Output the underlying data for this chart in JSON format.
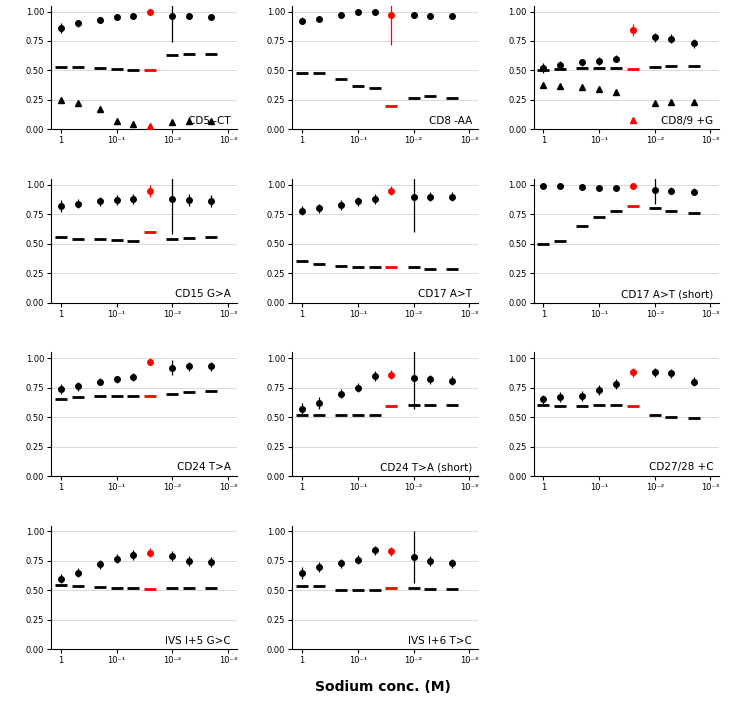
{
  "subplots": [
    {
      "label": "CD5 -CT",
      "x_positions": [
        1.0,
        0.5,
        0.2,
        0.1,
        0.05,
        0.025,
        0.01,
        0.005,
        0.002
      ],
      "series": [
        {
          "marker": "o",
          "colors": [
            "black",
            "black",
            "black",
            "black",
            "black",
            "red",
            "black",
            "black",
            "black"
          ],
          "y": [
            0.86,
            0.9,
            0.93,
            0.95,
            0.96,
            1.0,
            0.96,
            0.96,
            0.95
          ],
          "yerr": [
            0.04,
            0.03,
            0.02,
            0.02,
            0.02,
            0.02,
            0.22,
            0.02,
            0.02
          ]
        },
        {
          "marker": "_",
          "colors": [
            "black",
            "black",
            "black",
            "black",
            "black",
            "red",
            "black",
            "black",
            "black"
          ],
          "y": [
            0.53,
            0.53,
            0.52,
            0.51,
            0.5,
            0.5,
            0.63,
            0.64,
            0.64
          ],
          "yerr": [
            0.0,
            0.0,
            0.0,
            0.0,
            0.0,
            0.0,
            0.0,
            0.0,
            0.0
          ]
        },
        {
          "marker": "^",
          "colors": [
            "black",
            "black",
            "black",
            "black",
            "black",
            "red",
            "black",
            "black",
            "black"
          ],
          "y": [
            0.25,
            0.22,
            0.17,
            0.07,
            0.05,
            0.03,
            0.06,
            0.07,
            0.07
          ],
          "yerr": [
            0.0,
            0.0,
            0.0,
            0.0,
            0.0,
            0.0,
            0.0,
            0.0,
            0.0
          ]
        }
      ]
    },
    {
      "label": "CD8 -AA",
      "x_positions": [
        1.0,
        0.5,
        0.2,
        0.1,
        0.05,
        0.025,
        0.01,
        0.005,
        0.002
      ],
      "series": [
        {
          "marker": "o",
          "colors": [
            "black",
            "black",
            "black",
            "black",
            "black",
            "red",
            "black",
            "black",
            "black"
          ],
          "y": [
            0.92,
            0.94,
            0.97,
            1.0,
            1.0,
            0.97,
            0.97,
            0.96,
            0.96
          ],
          "yerr": [
            0.03,
            0.02,
            0.02,
            0.02,
            0.02,
            0.25,
            0.02,
            0.02,
            0.02
          ]
        },
        {
          "marker": "_",
          "colors": [
            "black",
            "black",
            "black",
            "black",
            "black",
            "red",
            "black",
            "black",
            "black"
          ],
          "y": [
            0.48,
            0.48,
            0.43,
            0.37,
            0.35,
            0.2,
            0.27,
            0.28,
            0.27
          ],
          "yerr": [
            0.0,
            0.0,
            0.0,
            0.0,
            0.0,
            0.0,
            0.0,
            0.0,
            0.0
          ]
        }
      ]
    },
    {
      "label": "CD8/9 +G",
      "x_positions": [
        1.0,
        0.5,
        0.2,
        0.1,
        0.05,
        0.025,
        0.01,
        0.005,
        0.002
      ],
      "series": [
        {
          "marker": "o",
          "colors": [
            "black",
            "black",
            "black",
            "black",
            "black",
            "red",
            "black",
            "black",
            "black"
          ],
          "y": [
            0.52,
            0.55,
            0.57,
            0.58,
            0.6,
            0.84,
            0.78,
            0.77,
            0.73
          ],
          "yerr": [
            0.04,
            0.03,
            0.03,
            0.03,
            0.03,
            0.05,
            0.04,
            0.04,
            0.04
          ]
        },
        {
          "marker": "_",
          "colors": [
            "black",
            "black",
            "black",
            "black",
            "black",
            "red",
            "black",
            "black",
            "black"
          ],
          "y": [
            0.5,
            0.51,
            0.52,
            0.52,
            0.52,
            0.51,
            0.53,
            0.54,
            0.54
          ],
          "yerr": [
            0.0,
            0.0,
            0.0,
            0.0,
            0.0,
            0.0,
            0.0,
            0.0,
            0.0
          ]
        },
        {
          "marker": "^",
          "colors": [
            "black",
            "black",
            "black",
            "black",
            "black",
            "red",
            "black",
            "black",
            "black"
          ],
          "y": [
            0.38,
            0.37,
            0.36,
            0.34,
            0.32,
            0.08,
            0.22,
            0.23,
            0.23
          ],
          "yerr": [
            0.0,
            0.0,
            0.0,
            0.0,
            0.0,
            0.0,
            0.0,
            0.0,
            0.0
          ]
        }
      ]
    },
    {
      "label": "CD15 G>A",
      "x_positions": [
        1.0,
        0.5,
        0.2,
        0.1,
        0.05,
        0.025,
        0.01,
        0.005,
        0.002
      ],
      "series": [
        {
          "marker": "o",
          "colors": [
            "black",
            "black",
            "black",
            "black",
            "black",
            "red",
            "black",
            "black",
            "black"
          ],
          "y": [
            0.82,
            0.84,
            0.86,
            0.87,
            0.88,
            0.95,
            0.88,
            0.87,
            0.86
          ],
          "yerr": [
            0.05,
            0.04,
            0.04,
            0.04,
            0.04,
            0.05,
            0.3,
            0.05,
            0.05
          ]
        },
        {
          "marker": "_",
          "colors": [
            "black",
            "black",
            "black",
            "black",
            "black",
            "red",
            "black",
            "black",
            "black"
          ],
          "y": [
            0.56,
            0.54,
            0.54,
            0.53,
            0.52,
            0.6,
            0.54,
            0.55,
            0.56
          ],
          "yerr": [
            0.0,
            0.0,
            0.0,
            0.0,
            0.0,
            0.0,
            0.0,
            0.0,
            0.0
          ]
        }
      ]
    },
    {
      "label": "CD17 A>T",
      "x_positions": [
        1.0,
        0.5,
        0.2,
        0.1,
        0.05,
        0.025,
        0.01,
        0.005,
        0.002
      ],
      "series": [
        {
          "marker": "o",
          "colors": [
            "black",
            "black",
            "black",
            "black",
            "black",
            "red",
            "black",
            "black",
            "black"
          ],
          "y": [
            0.78,
            0.8,
            0.83,
            0.86,
            0.88,
            0.95,
            0.9,
            0.9,
            0.9
          ],
          "yerr": [
            0.04,
            0.04,
            0.04,
            0.04,
            0.04,
            0.04,
            0.3,
            0.04,
            0.04
          ]
        },
        {
          "marker": "_",
          "colors": [
            "black",
            "black",
            "black",
            "black",
            "black",
            "red",
            "black",
            "black",
            "black"
          ],
          "y": [
            0.35,
            0.33,
            0.31,
            0.3,
            0.3,
            0.3,
            0.3,
            0.29,
            0.29
          ],
          "yerr": [
            0.0,
            0.0,
            0.0,
            0.0,
            0.0,
            0.0,
            0.0,
            0.0,
            0.0
          ]
        }
      ]
    },
    {
      "label": "CD17 A>T (short)",
      "x_positions": [
        1.0,
        0.5,
        0.2,
        0.1,
        0.05,
        0.025,
        0.01,
        0.005,
        0.002
      ],
      "series": [
        {
          "marker": "o",
          "colors": [
            "black",
            "black",
            "black",
            "black",
            "black",
            "red",
            "black",
            "black",
            "black"
          ],
          "y": [
            0.99,
            0.99,
            0.98,
            0.97,
            0.97,
            0.99,
            0.96,
            0.95,
            0.94
          ],
          "yerr": [
            0.01,
            0.01,
            0.01,
            0.01,
            0.01,
            0.01,
            0.12,
            0.03,
            0.03
          ]
        },
        {
          "marker": "_",
          "colors": [
            "black",
            "black",
            "black",
            "black",
            "black",
            "red",
            "black",
            "black",
            "black"
          ],
          "y": [
            0.5,
            0.52,
            0.65,
            0.73,
            0.78,
            0.82,
            0.8,
            0.78,
            0.76
          ],
          "yerr": [
            0.0,
            0.0,
            0.0,
            0.0,
            0.0,
            0.0,
            0.0,
            0.0,
            0.0
          ]
        }
      ]
    },
    {
      "label": "CD24 T>A",
      "x_positions": [
        1.0,
        0.5,
        0.2,
        0.1,
        0.05,
        0.025,
        0.01,
        0.005,
        0.002
      ],
      "series": [
        {
          "marker": "o",
          "colors": [
            "black",
            "black",
            "black",
            "black",
            "black",
            "red",
            "black",
            "black",
            "black"
          ],
          "y": [
            0.74,
            0.76,
            0.8,
            0.82,
            0.84,
            0.97,
            0.92,
            0.93,
            0.93
          ],
          "yerr": [
            0.04,
            0.04,
            0.03,
            0.03,
            0.03,
            0.03,
            0.06,
            0.04,
            0.04
          ]
        },
        {
          "marker": "_",
          "colors": [
            "black",
            "black",
            "black",
            "black",
            "black",
            "red",
            "black",
            "black",
            "black"
          ],
          "y": [
            0.65,
            0.67,
            0.68,
            0.68,
            0.68,
            0.68,
            0.7,
            0.71,
            0.72
          ],
          "yerr": [
            0.0,
            0.0,
            0.0,
            0.0,
            0.0,
            0.0,
            0.0,
            0.0,
            0.0
          ]
        }
      ]
    },
    {
      "label": "CD24 T>A (short)",
      "x_positions": [
        1.0,
        0.5,
        0.2,
        0.1,
        0.05,
        0.025,
        0.01,
        0.005,
        0.002
      ],
      "series": [
        {
          "marker": "o",
          "colors": [
            "black",
            "black",
            "black",
            "black",
            "black",
            "red",
            "black",
            "black",
            "black"
          ],
          "y": [
            0.57,
            0.62,
            0.7,
            0.75,
            0.85,
            0.86,
            0.83,
            0.82,
            0.81
          ],
          "yerr": [
            0.05,
            0.05,
            0.04,
            0.04,
            0.04,
            0.04,
            0.26,
            0.04,
            0.04
          ]
        },
        {
          "marker": "_",
          "colors": [
            "black",
            "black",
            "black",
            "black",
            "black",
            "red",
            "black",
            "black",
            "black"
          ],
          "y": [
            0.52,
            0.52,
            0.52,
            0.52,
            0.52,
            0.59,
            0.6,
            0.6,
            0.6
          ],
          "yerr": [
            0.0,
            0.0,
            0.0,
            0.0,
            0.0,
            0.0,
            0.0,
            0.0,
            0.0
          ]
        }
      ]
    },
    {
      "label": "CD27/28 +C",
      "x_positions": [
        1.0,
        0.5,
        0.2,
        0.1,
        0.05,
        0.025,
        0.01,
        0.005,
        0.002
      ],
      "series": [
        {
          "marker": "o",
          "colors": [
            "black",
            "black",
            "black",
            "black",
            "black",
            "red",
            "black",
            "black",
            "black"
          ],
          "y": [
            0.65,
            0.67,
            0.68,
            0.73,
            0.78,
            0.88,
            0.88,
            0.87,
            0.8
          ],
          "yerr": [
            0.04,
            0.04,
            0.04,
            0.04,
            0.04,
            0.04,
            0.04,
            0.04,
            0.04
          ]
        },
        {
          "marker": "_",
          "colors": [
            "black",
            "black",
            "black",
            "black",
            "black",
            "red",
            "black",
            "black",
            "black"
          ],
          "y": [
            0.6,
            0.59,
            0.59,
            0.6,
            0.6,
            0.59,
            0.52,
            0.5,
            0.49
          ],
          "yerr": [
            0.0,
            0.0,
            0.0,
            0.0,
            0.0,
            0.0,
            0.0,
            0.0,
            0.0
          ]
        }
      ]
    },
    {
      "label": "IVS I+5 G>C",
      "x_positions": [
        1.0,
        0.5,
        0.2,
        0.1,
        0.05,
        0.025,
        0.01,
        0.005,
        0.002
      ],
      "series": [
        {
          "marker": "o",
          "colors": [
            "black",
            "black",
            "black",
            "black",
            "black",
            "red",
            "black",
            "black",
            "black"
          ],
          "y": [
            0.6,
            0.65,
            0.72,
            0.77,
            0.8,
            0.82,
            0.79,
            0.75,
            0.74
          ],
          "yerr": [
            0.04,
            0.04,
            0.04,
            0.04,
            0.04,
            0.04,
            0.04,
            0.04,
            0.04
          ]
        },
        {
          "marker": "_",
          "colors": [
            "black",
            "black",
            "black",
            "black",
            "black",
            "red",
            "black",
            "black",
            "black"
          ],
          "y": [
            0.55,
            0.54,
            0.53,
            0.52,
            0.52,
            0.51,
            0.52,
            0.52,
            0.52
          ],
          "yerr": [
            0.0,
            0.0,
            0.0,
            0.0,
            0.0,
            0.0,
            0.0,
            0.0,
            0.0
          ]
        }
      ]
    },
    {
      "label": "IVS I+6 T>C",
      "x_positions": [
        1.0,
        0.5,
        0.2,
        0.1,
        0.05,
        0.025,
        0.01,
        0.005,
        0.002
      ],
      "series": [
        {
          "marker": "o",
          "colors": [
            "black",
            "black",
            "black",
            "black",
            "black",
            "red",
            "black",
            "black",
            "black"
          ],
          "y": [
            0.65,
            0.7,
            0.73,
            0.76,
            0.84,
            0.83,
            0.78,
            0.75,
            0.73
          ],
          "yerr": [
            0.05,
            0.04,
            0.04,
            0.04,
            0.04,
            0.04,
            0.22,
            0.04,
            0.04
          ]
        },
        {
          "marker": "_",
          "colors": [
            "black",
            "black",
            "black",
            "black",
            "black",
            "red",
            "black",
            "black",
            "black"
          ],
          "y": [
            0.54,
            0.54,
            0.5,
            0.5,
            0.5,
            0.52,
            0.52,
            0.51,
            0.51
          ],
          "yerr": [
            0.0,
            0.0,
            0.0,
            0.0,
            0.0,
            0.0,
            0.0,
            0.0,
            0.0
          ]
        }
      ]
    }
  ],
  "row_counts": [
    3,
    3,
    3,
    2
  ],
  "xlabel": "Sodium conc. (M)",
  "xlim_left": 1.5,
  "xlim_right": 0.0007,
  "ylim": [
    0.0,
    1.05
  ],
  "yticks": [
    0.0,
    0.25,
    0.5,
    0.75,
    1.0
  ],
  "xticks": [
    1.0,
    0.1,
    0.01,
    0.001
  ],
  "xticklabels": [
    "1",
    "10⁻¹",
    "10⁻²",
    "10⁻³"
  ],
  "bg_color": "white",
  "label_fontsize": 7.5,
  "tick_fontsize": 6,
  "xlabel_fontsize": 10,
  "circle_ms": 4,
  "dash_ms": 9,
  "triangle_ms": 5,
  "elinewidth": 0.9,
  "grid_color": "#cccccc",
  "grid_lw": 0.5
}
